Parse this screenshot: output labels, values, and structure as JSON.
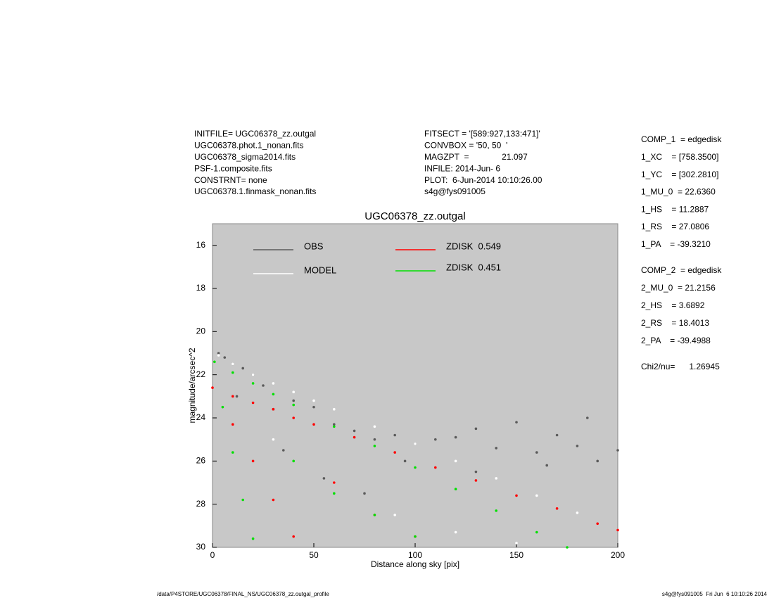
{
  "header": {
    "left": [
      "INITFILE= UGC06378_zz.outgal",
      "UGC06378.phot.1_nonan.fits",
      "UGC06378_sigma2014.fits",
      "PSF-1.composite.fits",
      "CONSTRNT= none",
      "UGC06378.1.finmask_nonan.fits"
    ],
    "middle": [
      "FITSECT = '[589:927,133:471]'",
      "CONVBOX = '50, 50  '",
      "MAGZPT  =              21.097",
      "INFILE: 2014-Jun- 6",
      "PLOT:  6-Jun-2014 10:10:26.00",
      "s4g@fys091005"
    ],
    "comp1": [
      "COMP_1  = edgedisk",
      "1_XC    = [758.3500]",
      "1_YC    = [302.2810]",
      "1_MU_0  = 22.6360",
      "1_HS    = 11.2887",
      "1_RS    = 27.0806",
      "1_PA    = -39.3210"
    ],
    "comp2": [
      "COMP_2  = edgedisk",
      "2_MU_0  = 21.2156",
      "2_HS    = 3.6892",
      "2_RS    = 18.4013",
      "2_PA    = -39.4988"
    ],
    "chi": "Chi2/nu=      1.26945"
  },
  "footer": {
    "left": "/data/P4STORE/UGC06378/FINAL_NS/UGC06378_zz.outgal_profile",
    "right": "s4g@fys091005  Fri Jun  6 10:10:26 2014"
  },
  "chart_data": {
    "type": "scatter",
    "title": "UGC06378_zz.outgal",
    "x_label": "Distance along sky [pix]",
    "y_label": "magnitude/arcsec^2",
    "xlim": [
      0,
      200
    ],
    "xticks": [
      0,
      50,
      100,
      150,
      200
    ],
    "ylim": [
      30,
      15
    ],
    "yticks": [
      16,
      18,
      20,
      22,
      24,
      26,
      28,
      30
    ],
    "background": "#c8c8c8",
    "series": [
      {
        "name": "OBS",
        "color": "#5a5a5a",
        "x": [
          3,
          6,
          10,
          15,
          20,
          25,
          30,
          40,
          50,
          60,
          70,
          80,
          90,
          100,
          110,
          120,
          130,
          140,
          150,
          160,
          170,
          180,
          190,
          200,
          12,
          35,
          55,
          75,
          95,
          130,
          165,
          185
        ],
        "values": [
          21.0,
          21.2,
          21.5,
          21.7,
          22.0,
          22.5,
          23.6,
          23.2,
          23.5,
          24.3,
          24.6,
          25.0,
          24.8,
          25.2,
          25.0,
          24.9,
          24.5,
          25.4,
          24.2,
          25.6,
          24.8,
          25.3,
          26.0,
          25.5,
          23.0,
          25.5,
          26.8,
          27.5,
          26.0,
          26.5,
          26.2,
          24.0
        ]
      },
      {
        "name": "MODEL",
        "color": "#ffffff",
        "x": [
          3,
          10,
          20,
          30,
          40,
          50,
          60,
          80,
          100,
          120,
          140,
          160,
          180,
          200,
          30,
          60,
          90,
          120,
          150
        ],
        "values": [
          21.1,
          21.5,
          22.0,
          22.4,
          22.8,
          23.2,
          23.6,
          24.4,
          25.2,
          26.0,
          26.8,
          27.6,
          28.4,
          29.2,
          25.0,
          27.0,
          28.5,
          29.3,
          29.8
        ]
      },
      {
        "name": "ZDISK  0.549",
        "color": "#ff0000",
        "x": [
          0,
          10,
          20,
          30,
          40,
          50,
          70,
          90,
          110,
          130,
          150,
          170,
          190,
          200,
          10,
          20,
          30,
          40,
          60,
          80,
          100
        ],
        "values": [
          22.6,
          23.0,
          23.3,
          23.6,
          24.0,
          24.3,
          24.9,
          25.6,
          26.3,
          26.9,
          27.6,
          28.2,
          28.9,
          29.2,
          24.3,
          26.0,
          27.8,
          29.5,
          27.0,
          28.5,
          29.5
        ]
      },
      {
        "name": "ZDISK  0.451",
        "color": "#00e000",
        "x": [
          1,
          10,
          20,
          30,
          40,
          60,
          80,
          100,
          120,
          140,
          160,
          175,
          5,
          10,
          15,
          20,
          40,
          60,
          80,
          100
        ],
        "values": [
          21.4,
          21.9,
          22.4,
          22.9,
          23.4,
          24.4,
          25.3,
          26.3,
          27.3,
          28.3,
          29.3,
          30.0,
          23.5,
          25.6,
          27.8,
          29.6,
          26.0,
          27.5,
          28.5,
          29.5
        ]
      }
    ]
  }
}
